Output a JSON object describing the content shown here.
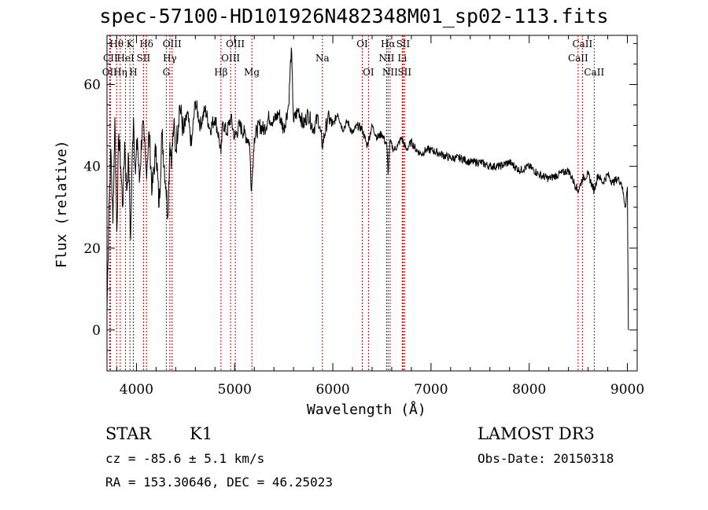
{
  "title": "spec-57100-HD101926N482348M01_sp02-113.fits",
  "info": {
    "object_class": "STAR",
    "subclass": "K1",
    "cz": "cz = -85.6 ± 5.1 km/s",
    "coords": "RA = 153.30646, DEC =  46.25023",
    "survey": "LAMOST DR3",
    "obs_date": "Obs-Date: 20150318"
  },
  "chart_data": {
    "type": "line",
    "title": "spec-57100-HD101926N482348M01_sp02-113.fits",
    "xlabel": "Wavelength (Å)",
    "ylabel": "Flux (relative)",
    "xlim": [
      3700,
      9100
    ],
    "ylim": [
      -10,
      72
    ],
    "xticks": [
      4000,
      5000,
      6000,
      7000,
      8000,
      9000
    ],
    "yticks": [
      0,
      20,
      40,
      60
    ],
    "grid": false,
    "series": [
      {
        "name": "flux",
        "x": [
          3700,
          3720,
          3740,
          3760,
          3780,
          3800,
          3820,
          3840,
          3860,
          3880,
          3900,
          3920,
          3940,
          3960,
          3970,
          3990,
          4010,
          4030,
          4060,
          4080,
          4100,
          4130,
          4160,
          4200,
          4230,
          4260,
          4300,
          4320,
          4340,
          4360,
          4380,
          4400,
          4440,
          4480,
          4520,
          4560,
          4600,
          4650,
          4700,
          4750,
          4800,
          4840,
          4861,
          4880,
          4920,
          4960,
          5000,
          5050,
          5100,
          5150,
          5172,
          5185,
          5200,
          5250,
          5300,
          5350,
          5400,
          5450,
          5500,
          5550,
          5577,
          5600,
          5650,
          5700,
          5750,
          5800,
          5850,
          5893,
          5950,
          6000,
          6050,
          6100,
          6150,
          6200,
          6250,
          6300,
          6350,
          6400,
          6450,
          6500,
          6550,
          6563,
          6580,
          6620,
          6660,
          6700,
          6750,
          6800,
          6850,
          6900,
          6950,
          7000,
          7100,
          7200,
          7300,
          7400,
          7500,
          7600,
          7700,
          7800,
          7900,
          8000,
          8100,
          8200,
          8300,
          8400,
          8498,
          8542,
          8600,
          8662,
          8700,
          8750,
          8800,
          8850,
          8900,
          8940,
          8980,
          9000,
          9010
        ],
        "values": [
          5,
          30,
          44,
          26,
          52,
          24,
          48,
          40,
          30,
          46,
          34,
          42,
          22,
          46,
          52,
          38,
          47,
          36,
          50,
          46,
          39,
          48,
          34,
          45,
          30,
          48,
          35,
          28,
          46,
          42,
          50,
          44,
          55,
          48,
          53,
          45,
          56,
          50,
          54,
          49,
          52,
          47,
          43,
          51,
          48,
          52,
          47,
          50,
          48,
          46,
          34,
          40,
          47,
          50,
          49,
          52,
          51,
          53,
          49,
          55,
          69,
          51,
          54,
          50,
          53,
          49,
          52,
          45,
          52,
          50,
          53,
          49,
          51,
          48,
          50,
          49,
          45,
          50,
          47,
          48,
          45,
          38,
          46,
          44,
          45,
          47,
          44,
          46,
          44,
          43,
          44,
          44,
          43,
          42,
          42,
          41,
          41,
          40,
          40,
          41,
          39,
          40,
          38,
          37,
          38,
          39,
          34,
          37,
          38,
          34,
          38,
          36,
          38,
          36,
          37,
          36,
          30,
          35,
          0
        ],
        "color": "#000000"
      }
    ],
    "lines": [
      {
        "name": "OII",
        "wavelength": 3727,
        "row": 2
      },
      {
        "name": "CII",
        "wavelength": 3735,
        "row": 1
      },
      {
        "name": "Hθ",
        "wavelength": 3798,
        "row": 0
      },
      {
        "name": "Hη",
        "wavelength": 3835,
        "row": 2
      },
      {
        "name": "HeI",
        "wavelength": 3889,
        "row": 1
      },
      {
        "name": "K",
        "wavelength": 3934,
        "row": 0
      },
      {
        "name": "H",
        "wavelength": 3968,
        "row": 2
      },
      {
        "name": "SII",
        "wavelength": 4072,
        "row": 1
      },
      {
        "name": "Hδ",
        "wavelength": 4102,
        "row": 0
      },
      {
        "name": "G",
        "wavelength": 4304,
        "row": 2
      },
      {
        "name": "Hγ",
        "wavelength": 4340,
        "row": 1
      },
      {
        "name": "OIII",
        "wavelength": 4363,
        "row": 0
      },
      {
        "name": "Hβ",
        "wavelength": 4861,
        "row": 2
      },
      {
        "name": "OIII",
        "wavelength": 4959,
        "row": 1
      },
      {
        "name": "OIII",
        "wavelength": 5007,
        "row": 0
      },
      {
        "name": "Mg",
        "wavelength": 5175,
        "row": 2
      },
      {
        "name": "Na",
        "wavelength": 5894,
        "row": 1
      },
      {
        "name": "OI",
        "wavelength": 6300,
        "row": 0
      },
      {
        "name": "OI",
        "wavelength": 6363,
        "row": 2
      },
      {
        "name": "NII",
        "wavelength": 6548,
        "row": 1
      },
      {
        "name": "Hα",
        "wavelength": 6563,
        "row": 0
      },
      {
        "name": "NII",
        "wavelength": 6583,
        "row": 2
      },
      {
        "name": "Li",
        "wavelength": 6707,
        "row": 1
      },
      {
        "name": "SII",
        "wavelength": 6716,
        "row": 0
      },
      {
        "name": "SII",
        "wavelength": 6731,
        "row": 2
      },
      {
        "name": "CaII",
        "wavelength": 8498,
        "row": 1
      },
      {
        "name": "CaII",
        "wavelength": 8542,
        "row": 0
      },
      {
        "name": "CaII",
        "wavelength": 8662,
        "row": 2
      }
    ]
  }
}
